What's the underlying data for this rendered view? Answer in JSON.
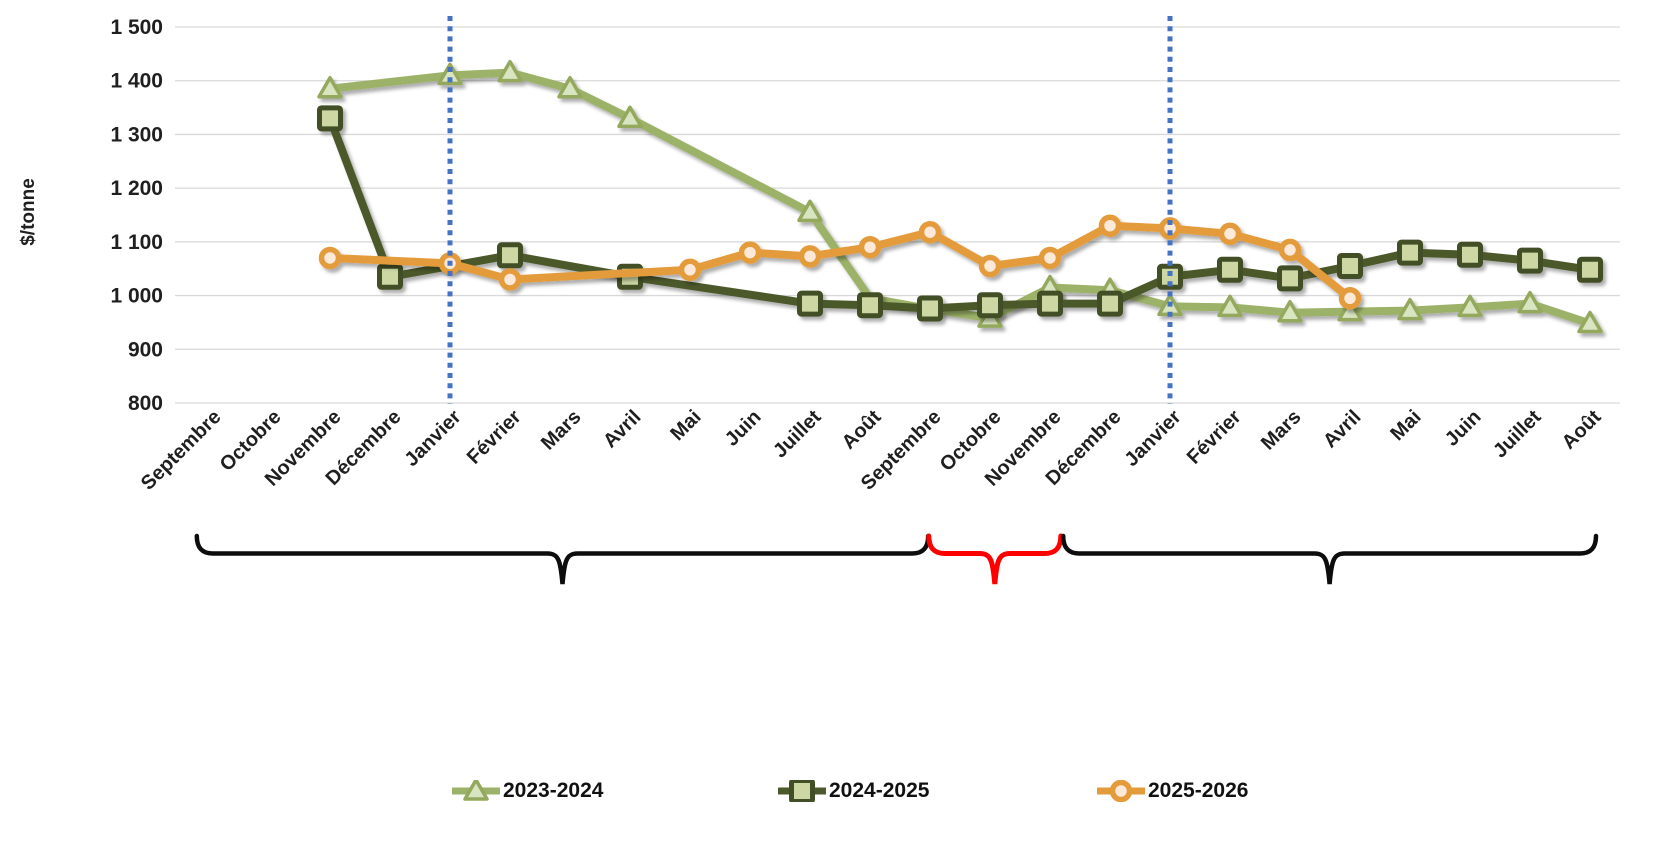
{
  "chart_data": {
    "type": "line",
    "title": "",
    "ylabel": "$/tonne",
    "ylim": [
      800,
      1500
    ],
    "ytick_step": 100,
    "ytick_labels": [
      "800",
      "900",
      "1 000",
      "1 100",
      "1 200",
      "1 300",
      "1 400",
      "1 500"
    ],
    "grid": "horizontal",
    "categories": [
      "Septembre",
      "Octobre",
      "Novembre",
      "Décembre",
      "Janvier",
      "Février",
      "Mars",
      "Avril",
      "Mai",
      "Juin",
      "Juillet",
      "Août",
      "Septembre",
      "Octobre",
      "Novembre",
      "Décembre",
      "Janvier",
      "Février",
      "Mars",
      "Avril",
      "Mai",
      "Juin",
      "Juillet",
      "Août"
    ],
    "series": [
      {
        "name": "2023-2024",
        "marker": "triangle",
        "line_color": "#9DB269",
        "marker_fill": "#D9E5C0",
        "marker_stroke": "#94A95D",
        "points": [
          [
            2,
            1385,
            1
          ],
          [
            4,
            1410,
            1
          ],
          [
            5,
            1415,
            1
          ],
          [
            6,
            1385,
            1
          ],
          [
            7,
            1330,
            1
          ],
          [
            10,
            1155,
            1
          ],
          [
            11,
            995,
            0
          ],
          [
            12,
            975,
            0
          ],
          [
            13,
            958,
            1
          ],
          [
            14,
            1015,
            1
          ],
          [
            15,
            1010,
            1
          ],
          [
            16,
            980,
            1
          ],
          [
            17,
            978,
            1
          ],
          [
            18,
            968,
            1
          ],
          [
            19,
            970,
            1
          ],
          [
            20,
            972,
            1
          ],
          [
            21,
            978,
            1
          ],
          [
            22,
            985,
            1
          ],
          [
            23,
            948,
            1
          ]
        ]
      },
      {
        "name": "2024-2025",
        "marker": "square",
        "line_color": "#4C592C",
        "marker_fill": "#CCD7A3",
        "marker_stroke": "#424F26",
        "points": [
          [
            2,
            1330,
            1
          ],
          [
            3,
            1035,
            1
          ],
          [
            5,
            1075,
            1
          ],
          [
            7,
            1035,
            1
          ],
          [
            10,
            985,
            1
          ],
          [
            11,
            982,
            1
          ],
          [
            12,
            976,
            1
          ],
          [
            13,
            982,
            1
          ],
          [
            14,
            985,
            1
          ],
          [
            15,
            985,
            1
          ],
          [
            16,
            1035,
            1
          ],
          [
            17,
            1048,
            1
          ],
          [
            18,
            1032,
            1
          ],
          [
            19,
            1055,
            1
          ],
          [
            20,
            1080,
            1
          ],
          [
            21,
            1076,
            1
          ],
          [
            22,
            1065,
            1
          ],
          [
            23,
            1048,
            1
          ]
        ]
      },
      {
        "name": "2025-2026",
        "marker": "circle",
        "line_color": "#E39B3B",
        "marker_fill": "#FCE9DA",
        "marker_stroke": "#E39B3B",
        "points": [
          [
            2,
            1070,
            1
          ],
          [
            4,
            1060,
            1
          ],
          [
            5,
            1030,
            1
          ],
          [
            8,
            1048,
            1
          ],
          [
            9,
            1080,
            1
          ],
          [
            10,
            1073,
            1
          ],
          [
            11,
            1090,
            1
          ],
          [
            12,
            1118,
            1
          ],
          [
            13,
            1055,
            1
          ],
          [
            14,
            1070,
            1
          ],
          [
            15,
            1130,
            1
          ],
          [
            16,
            1125,
            1
          ],
          [
            17,
            1115,
            1
          ],
          [
            18,
            1085,
            1
          ],
          [
            19,
            995,
            1
          ]
        ]
      }
    ],
    "vlines": [
      {
        "at_category": 4,
        "label": "Janvier (année 1)",
        "color": "#4472C4",
        "style": "dotted"
      },
      {
        "at_category": 16,
        "label": "Janvier (année 2)",
        "color": "#4472C4",
        "style": "dotted"
      }
    ],
    "braces": [
      {
        "start_category": -0.22,
        "end_category": 11.97,
        "color": "#0D0D0D"
      },
      {
        "start_category": 11.98,
        "end_category": 14.18,
        "color": "#FF0000"
      },
      {
        "start_category": 14.22,
        "end_category": 23.1,
        "color": "#0D0D0D"
      }
    ],
    "legend_position": "bottom"
  },
  "colors": {
    "grid": "#D9D9D9",
    "axis_text": "#1F1F1F",
    "reference_line": "#4472C4",
    "highlight_brace": "#FF0000",
    "period_brace": "#0D0D0D"
  }
}
